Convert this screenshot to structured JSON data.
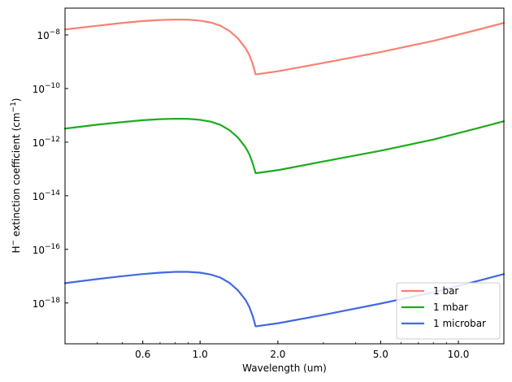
{
  "chart_data": {
    "type": "line",
    "xlabel": "Wavelength (um)",
    "ylabel_main": "H",
    "ylabel_sup": "−",
    "ylabel_rest": " extinction coefficient (cm",
    "ylabel_unit_sup": "−1",
    "ylabel_close": ")",
    "xscale": "log",
    "yscale": "log",
    "xlim": [
      0.3,
      15
    ],
    "ylim": [
      3e-20,
      1e-07
    ],
    "x_ticks": [
      {
        "value": 0.6,
        "label": "0.6"
      },
      {
        "value": 1.0,
        "label": "1.0"
      },
      {
        "value": 2.0,
        "label": "2.0"
      },
      {
        "value": 5.0,
        "label": "5.0"
      },
      {
        "value": 10.0,
        "label": "10.0"
      }
    ],
    "y_ticks": [
      {
        "exp": -8,
        "base": "10",
        "sup": "−8"
      },
      {
        "exp": -10,
        "base": "10",
        "sup": "−10"
      },
      {
        "exp": -12,
        "base": "10",
        "sup": "−12"
      },
      {
        "exp": -14,
        "base": "10",
        "sup": "−14"
      },
      {
        "exp": -16,
        "base": "10",
        "sup": "−16"
      },
      {
        "exp": -18,
        "base": "10",
        "sup": "−18"
      }
    ],
    "legend_position": "lower-right",
    "series": [
      {
        "name": "1 bar",
        "color": "#fa8072",
        "x": [
          0.3,
          0.4,
          0.5,
          0.6,
          0.7,
          0.8,
          0.9,
          1.0,
          1.1,
          1.2,
          1.3,
          1.4,
          1.5,
          1.55,
          1.6,
          1.64,
          1.65,
          2.0,
          3.0,
          5.0,
          8.0,
          12.0,
          15.0
        ],
        "y": [
          1.6e-08,
          2.2e-08,
          2.8e-08,
          3.3e-08,
          3.6e-08,
          3.75e-08,
          3.7e-08,
          3.4e-08,
          2.9e-08,
          2.2e-08,
          1.4e-08,
          7.5e-09,
          3.2e-09,
          1.8e-09,
          8e-10,
          3.4e-10,
          3.4e-10,
          4.4e-10,
          9e-10,
          2.3e-09,
          6e-09,
          1.6e-08,
          2.8e-08
        ]
      },
      {
        "name": "1 mbar",
        "color": "#1faa1f",
        "x": [
          0.3,
          0.4,
          0.5,
          0.6,
          0.7,
          0.8,
          0.9,
          1.0,
          1.1,
          1.2,
          1.3,
          1.4,
          1.5,
          1.55,
          1.6,
          1.64,
          1.65,
          2.0,
          3.0,
          5.0,
          8.0,
          12.0,
          15.0
        ],
        "y": [
          3.2e-12,
          4.5e-12,
          5.6e-12,
          6.6e-12,
          7.2e-12,
          7.5e-12,
          7.4e-12,
          6.8e-12,
          5.8e-12,
          4.4e-12,
          2.8e-12,
          1.5e-12,
          6.4e-13,
          3.6e-13,
          1.6e-13,
          7e-14,
          7e-14,
          9e-14,
          1.9e-13,
          4.8e-13,
          1.25e-12,
          3.4e-12,
          6e-12
        ]
      },
      {
        "name": "1 microbar",
        "color": "#4169e1",
        "x": [
          0.3,
          0.4,
          0.5,
          0.6,
          0.7,
          0.8,
          0.9,
          1.0,
          1.1,
          1.2,
          1.3,
          1.4,
          1.5,
          1.55,
          1.6,
          1.64,
          1.65,
          2.0,
          3.0,
          5.0,
          8.0,
          12.0,
          15.0
        ],
        "y": [
          5.5e-18,
          7.8e-18,
          1e-17,
          1.2e-17,
          1.35e-17,
          1.45e-17,
          1.45e-17,
          1.35e-17,
          1.15e-17,
          8.8e-18,
          5.6e-18,
          3e-18,
          1.3e-18,
          7.2e-19,
          3.2e-19,
          1.35e-19,
          1.35e-19,
          1.75e-19,
          3.6e-19,
          9.5e-19,
          2.5e-18,
          6.8e-18,
          1.2e-17
        ]
      }
    ]
  }
}
